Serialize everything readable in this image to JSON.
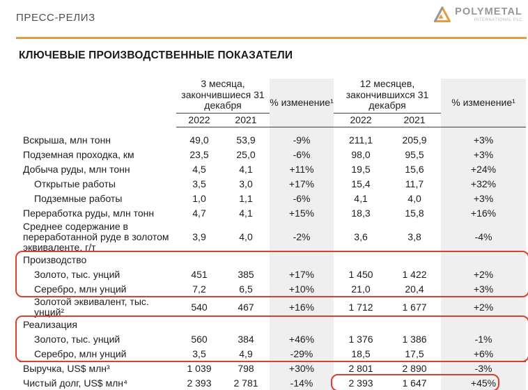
{
  "page": {
    "doc_label": "ПРЕСС-РЕЛИЗ",
    "logo": {
      "brand": "POLYMETAL",
      "brand_sub": "INTERNATIONAL PLC"
    },
    "title": "КЛЮЧЕВЫЕ ПРОИЗВОДСТВЕННЫЕ ПОКАЗАТЕЛИ"
  },
  "colors": {
    "accent_orange": "#E49C3F",
    "logo_gray": "#979797",
    "annotation_red": "#D8402F",
    "col_gray_bg": "#EFEFEF",
    "text_dark": "#1C1C1C",
    "header_gray_text": "#4F4F4F"
  },
  "table": {
    "groups": [
      {
        "title": "3 месяца, закончившиеся 31 декабря",
        "years": [
          "2022",
          "2021"
        ]
      },
      {
        "title": "% изменение¹"
      },
      {
        "title": "12 месяцев, закончившихся 31 декабря",
        "years": [
          "2022",
          "2021"
        ]
      },
      {
        "title": "% изменение¹"
      }
    ],
    "rows": [
      {
        "label": "Вскрыша, млн тонн",
        "values": [
          "49,0",
          "53,9",
          "-9%",
          "211,1",
          "205,9",
          "+3%"
        ]
      },
      {
        "label": "Подземная проходка, км",
        "values": [
          "23,5",
          "25,0",
          "-6%",
          "98,0",
          "95,5",
          "+3%"
        ]
      },
      {
        "label": "Добыча руды, млн тонн",
        "values": [
          "4,5",
          "4,1",
          "+11%",
          "19,5",
          "15,6",
          "+24%"
        ]
      },
      {
        "label": "Открытые работы",
        "indent": true,
        "values": [
          "3,5",
          "3,0",
          "+17%",
          "15,4",
          "11,7",
          "+32%"
        ]
      },
      {
        "label": "Подземные работы",
        "indent": true,
        "values": [
          "1,0",
          "1,1",
          "-6%",
          "4,1",
          "4,0",
          "+3%"
        ]
      },
      {
        "label": "Переработка руды, млн тонн",
        "values": [
          "4,7",
          "4,1",
          "+15%",
          "18,3",
          "15,8",
          "+16%"
        ]
      },
      {
        "label": "Среднее содержание в переработанной руде в золотом эквиваленте, г/т",
        "tall": 3,
        "values": [
          "3,9",
          "4,0",
          "-2%",
          "3,6",
          "3,8",
          "-4%"
        ]
      },
      {
        "label": "Производство",
        "section": true,
        "values": []
      },
      {
        "label": "Золото, тыс. унций",
        "indent": true,
        "values": [
          "451",
          "385",
          "+17%",
          "1 450",
          "1 422",
          "+2%"
        ]
      },
      {
        "label": "Серебро, млн унций",
        "indent": true,
        "values": [
          "7,2",
          "6,5",
          "+10%",
          "21,0",
          "20,4",
          "+3%"
        ]
      },
      {
        "label": "Золотой эквивалент, тыс. унций²",
        "indent": true,
        "tall": 2,
        "values": [
          "540",
          "467",
          "+16%",
          "1 712",
          "1 677",
          "+2%"
        ]
      },
      {
        "label": "Реализация",
        "section": true,
        "values": []
      },
      {
        "label": "Золото, тыс. унций",
        "indent": true,
        "values": [
          "560",
          "384",
          "+46%",
          "1 376",
          "1 386",
          "-1%"
        ]
      },
      {
        "label": "Серебро, млн унций",
        "indent": true,
        "values": [
          "3,5",
          "4,9",
          "-29%",
          "18,5",
          "17,5",
          "+6%"
        ]
      },
      {
        "label": "Выручка, US$ млн³",
        "topline": true,
        "values": [
          "1 039",
          "798",
          "+30%",
          "2 801",
          "2 890",
          "-3%"
        ]
      },
      {
        "label": "Чистый долг, US$ млн⁴",
        "values": [
          "2 393",
          "2 781",
          "-14%",
          "2 393",
          "1 647",
          "+45%"
        ]
      }
    ],
    "annotations": [
      {
        "type": "box",
        "rows": [
          7,
          9
        ],
        "full_width": true
      },
      {
        "type": "box",
        "rows": [
          11,
          13
        ],
        "full_width": true
      },
      {
        "type": "box",
        "rows": [
          15,
          15
        ],
        "cols": [
          4,
          6
        ]
      }
    ]
  }
}
